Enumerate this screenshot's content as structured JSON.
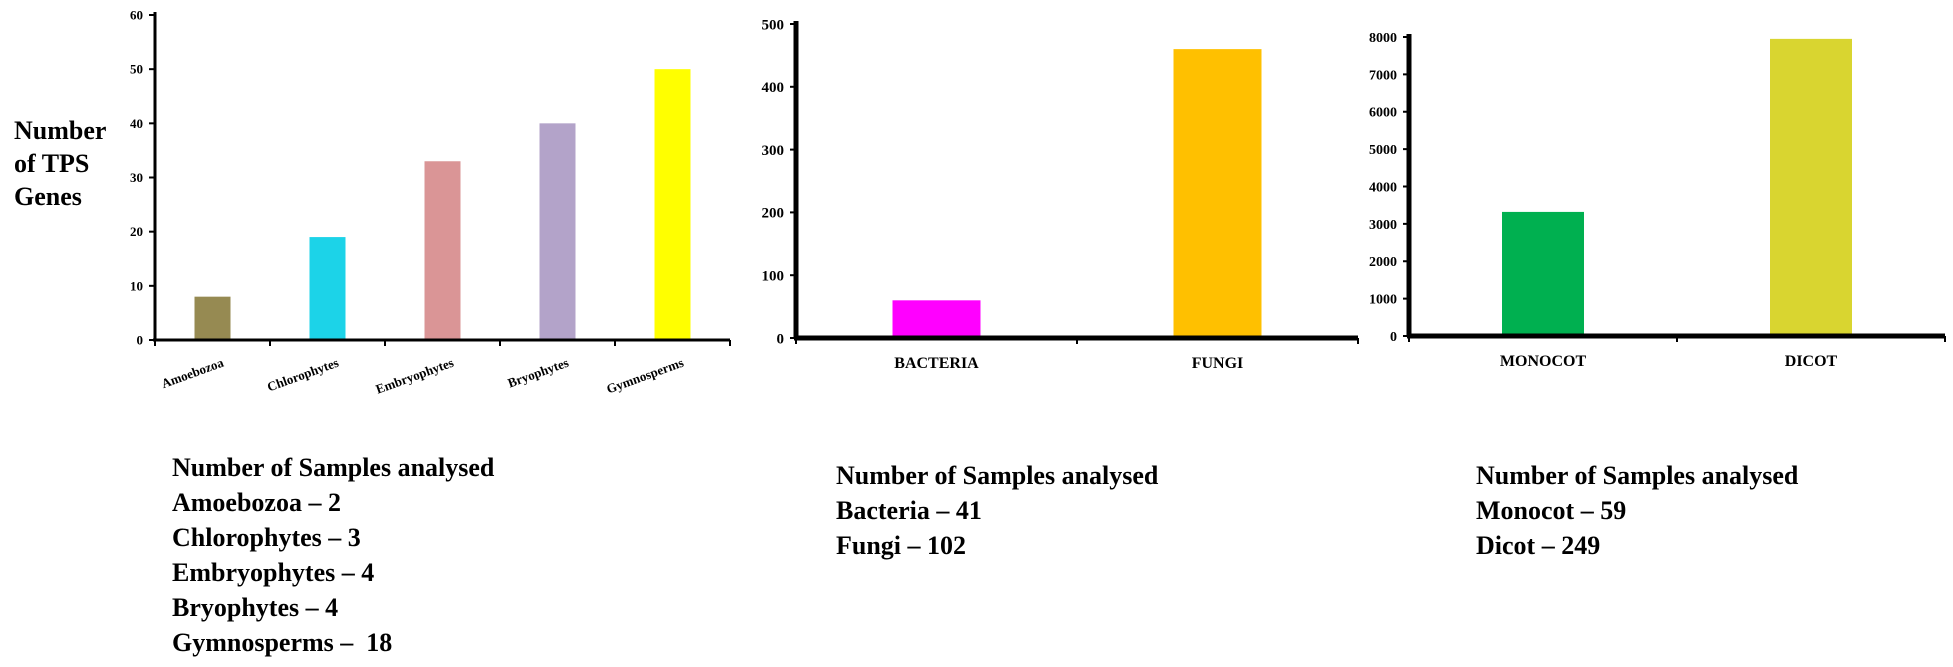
{
  "chart_data": [
    {
      "type": "bar",
      "categories": [
        "Amoebozoa",
        "Chlorophytes",
        "Embryophytes",
        "Bryophytes",
        "Gymnosperms"
      ],
      "values": [
        8,
        19,
        33,
        40,
        50
      ],
      "colors": [
        "#968a52",
        "#1cd3e8",
        "#da9596",
        "#b3a3c9",
        "#ffff00"
      ],
      "ylabel": "Number of TPS Genes",
      "ylabel_lines": [
        "Number",
        "of TPS",
        "Genes"
      ],
      "ylim": [
        0,
        60
      ],
      "yticks": [
        0,
        10,
        20,
        30,
        40,
        50,
        60
      ],
      "grid": false
    },
    {
      "type": "bar",
      "categories": [
        "BACTERIA",
        "FUNGI"
      ],
      "values": [
        60,
        460
      ],
      "colors": [
        "#ff00ff",
        "#ffc000"
      ],
      "ylim": [
        0,
        500
      ],
      "yticks": [
        0,
        100,
        200,
        300,
        400,
        500
      ],
      "grid": false
    },
    {
      "type": "bar",
      "categories": [
        "MONOCOT",
        "DICOT"
      ],
      "values": [
        3320,
        7950
      ],
      "colors": [
        "#00b050",
        "#d9d530"
      ],
      "ylim": [
        0,
        8000
      ],
      "yticks": [
        0,
        1000,
        2000,
        3000,
        4000,
        5000,
        6000,
        7000,
        8000
      ],
      "grid": false
    }
  ],
  "notes": [
    [
      "Number of Samples analysed",
      "Amoebozoa – 2",
      "Chlorophytes – 3",
      "Embryophytes – 4",
      "Bryophytes – 4",
      "Gymnosperms –  18"
    ],
    [
      "Number of Samples analysed",
      "Bacteria – 41",
      "Fungi – 102"
    ],
    [
      "Number of Samples analysed",
      "Monocot – 59",
      "Dicot – 249"
    ]
  ]
}
